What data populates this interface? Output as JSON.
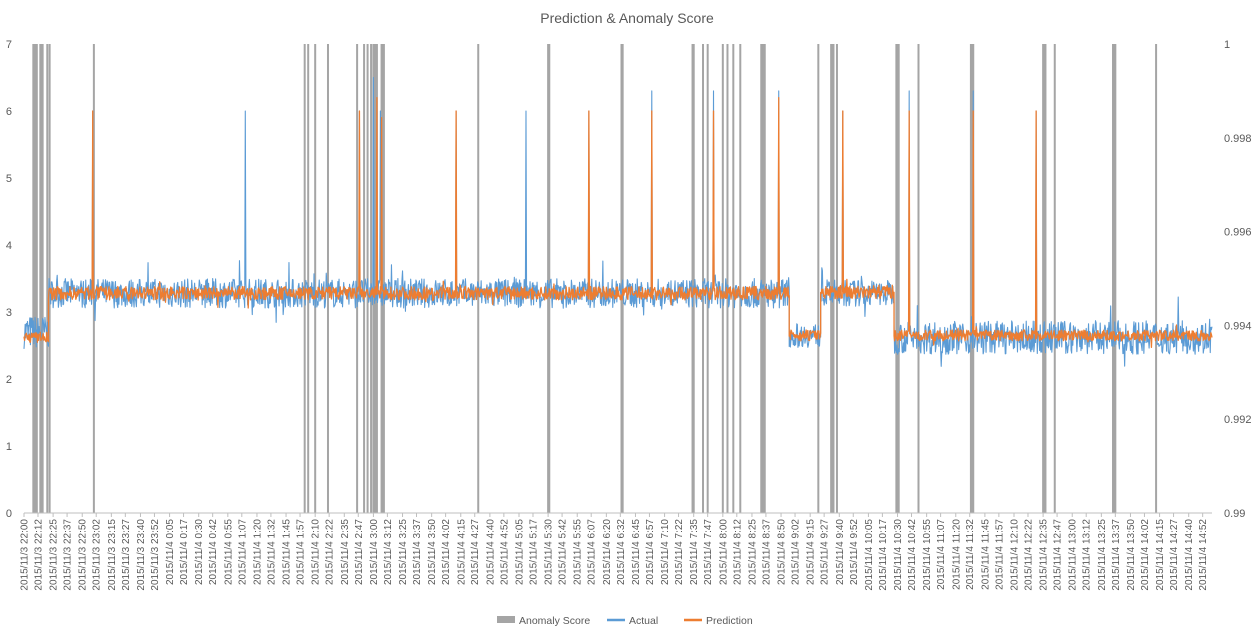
{
  "chart_data": {
    "type": "line",
    "title": "Prediction & Anomaly Score",
    "xlabel": "",
    "ylabel": "",
    "y_left": {
      "min": 0,
      "max": 7,
      "ticks": [
        "0",
        "1",
        "2",
        "3",
        "4",
        "5",
        "6",
        "7"
      ]
    },
    "y_right": {
      "min": 0.99,
      "max": 1.0,
      "ticks": [
        "0.99",
        "0.992",
        "0.994",
        "0.996",
        "0.998",
        "1"
      ]
    },
    "x_range": [
      "2015/11/3 22:00",
      "2015/11/4 15:00"
    ],
    "x_tick_labels": [
      "2015/11/3 22:00",
      "2015/11/3 22:12",
      "2015/11/3 22:25",
      "2015/11/3 22:37",
      "2015/11/3 22:50",
      "2015/11/3 23:02",
      "2015/11/3 23:15",
      "2015/11/3 23:27",
      "2015/11/3 23:40",
      "2015/11/3 23:52",
      "2015/11/4 0:05",
      "2015/11/4 0:17",
      "2015/11/4 0:30",
      "2015/11/4 0:42",
      "2015/11/4 0:55",
      "2015/11/4 1:07",
      "2015/11/4 1:20",
      "2015/11/4 1:32",
      "2015/11/4 1:45",
      "2015/11/4 1:57",
      "2015/11/4 2:10",
      "2015/11/4 2:22",
      "2015/11/4 2:35",
      "2015/11/4 2:47",
      "2015/11/4 3:00",
      "2015/11/4 3:12",
      "2015/11/4 3:25",
      "2015/11/4 3:37",
      "2015/11/4 3:50",
      "2015/11/4 4:02",
      "2015/11/4 4:15",
      "2015/11/4 4:27",
      "2015/11/4 4:40",
      "2015/11/4 4:52",
      "2015/11/4 5:05",
      "2015/11/4 5:17",
      "2015/11/4 5:30",
      "2015/11/4 5:42",
      "2015/11/4 5:55",
      "2015/11/4 6:07",
      "2015/11/4 6:20",
      "2015/11/4 6:32",
      "2015/11/4 6:45",
      "2015/11/4 6:57",
      "2015/11/4 7:10",
      "2015/11/4 7:22",
      "2015/11/4 7:35",
      "2015/11/4 7:47",
      "2015/11/4 8:00",
      "2015/11/4 8:12",
      "2015/11/4 8:25",
      "2015/11/4 8:37",
      "2015/11/4 8:50",
      "2015/11/4 9:02",
      "2015/11/4 9:15",
      "2015/11/4 9:27",
      "2015/11/4 9:40",
      "2015/11/4 9:52",
      "2015/11/4 10:05",
      "2015/11/4 10:17",
      "2015/11/4 10:30",
      "2015/11/4 10:42",
      "2015/11/4 10:55",
      "2015/11/4 11:07",
      "2015/11/4 11:20",
      "2015/11/4 11:32",
      "2015/11/4 11:45",
      "2015/11/4 11:57",
      "2015/11/4 12:10",
      "2015/11/4 12:22",
      "2015/11/4 12:35",
      "2015/11/4 12:47",
      "2015/11/4 13:00",
      "2015/11/4 13:12",
      "2015/11/4 13:25",
      "2015/11/4 13:37",
      "2015/11/4 13:50",
      "2015/11/4 14:02",
      "2015/11/4 14:15",
      "2015/11/4 14:27",
      "2015/11/4 14:40",
      "2015/11/4 14:52"
    ],
    "grid": false,
    "legend": {
      "position": "bottom",
      "entries": [
        "Anomaly Score",
        "Actual",
        "Prediction"
      ]
    },
    "series": [
      {
        "name": "Anomaly Score",
        "kind": "bar",
        "axis": "right",
        "color": "#a5a5a5",
        "value_when_flagged": 1.0,
        "flagged_x": [
          "2015/11/3 22:08",
          "2015/11/3 22:09",
          "2015/11/3 22:10",
          "2015/11/3 22:11",
          "2015/11/3 22:14",
          "2015/11/3 22:15",
          "2015/11/3 22:16",
          "2015/11/3 22:20",
          "2015/11/3 22:22",
          "2015/11/3 23:00",
          "2015/11/4 2:01",
          "2015/11/4 2:04",
          "2015/11/4 2:10",
          "2015/11/4 2:21",
          "2015/11/4 2:46",
          "2015/11/4 2:52",
          "2015/11/4 2:55",
          "2015/11/4 2:58",
          "2015/11/4 3:00",
          "2015/11/4 3:01",
          "2015/11/4 3:02",
          "2015/11/4 3:03",
          "2015/11/4 3:07",
          "2015/11/4 3:08",
          "2015/11/4 3:09",
          "2015/11/4 4:30",
          "2015/11/4 5:30",
          "2015/11/4 5:31",
          "2015/11/4 6:33",
          "2015/11/4 6:34",
          "2015/11/4 7:34",
          "2015/11/4 7:35",
          "2015/11/4 7:43",
          "2015/11/4 7:47",
          "2015/11/4 8:00",
          "2015/11/4 8:04",
          "2015/11/4 8:09",
          "2015/11/4 8:15",
          "2015/11/4 8:33",
          "2015/11/4 8:34",
          "2015/11/4 8:35",
          "2015/11/4 8:36",
          "2015/11/4 9:22",
          "2015/11/4 9:33",
          "2015/11/4 9:34",
          "2015/11/4 9:35",
          "2015/11/4 9:38",
          "2015/11/4 10:29",
          "2015/11/4 10:30",
          "2015/11/4 10:31",
          "2015/11/4 10:48",
          "2015/11/4 11:33",
          "2015/11/4 11:34",
          "2015/11/4 11:35",
          "2015/11/4 12:35",
          "2015/11/4 12:36",
          "2015/11/4 12:37",
          "2015/11/4 12:45",
          "2015/11/4 13:35",
          "2015/11/4 13:36",
          "2015/11/4 13:37",
          "2015/11/4 14:12"
        ]
      },
      {
        "name": "Actual",
        "kind": "line",
        "axis": "left",
        "color": "#5b9bd5",
        "segments": [
          {
            "from": "2015/11/3 22:00",
            "to": "2015/11/3 22:21",
            "baseline": 2.7,
            "noise": 0.25
          },
          {
            "from": "2015/11/3 22:21",
            "to": "2015/11/4 8:57",
            "baseline": 3.28,
            "noise": 0.22
          },
          {
            "from": "2015/11/4 8:57",
            "to": "2015/11/4 9:24",
            "baseline": 2.65,
            "noise": 0.18
          },
          {
            "from": "2015/11/4 9:24",
            "to": "2015/11/4 10:27",
            "baseline": 3.28,
            "noise": 0.2
          },
          {
            "from": "2015/11/4 10:27",
            "to": "2015/11/4 15:00",
            "baseline": 2.62,
            "noise": 0.25
          }
        ],
        "spikes": [
          {
            "x": "2015/11/3 22:59",
            "y": 6.0
          },
          {
            "x": "2015/11/4 1:10",
            "y": 6.0
          },
          {
            "x": "2015/11/4 2:48",
            "y": 6.0
          },
          {
            "x": "2015/11/4 3:00",
            "y": 6.5
          },
          {
            "x": "2015/11/4 3:06",
            "y": 6.0
          },
          {
            "x": "2015/11/4 4:11",
            "y": 6.0
          },
          {
            "x": "2015/11/4 5:11",
            "y": 6.0
          },
          {
            "x": "2015/11/4 6:05",
            "y": 6.0
          },
          {
            "x": "2015/11/4 6:59",
            "y": 6.3
          },
          {
            "x": "2015/11/4 7:52",
            "y": 6.3
          },
          {
            "x": "2015/11/4 8:48",
            "y": 6.3
          },
          {
            "x": "2015/11/4 9:43",
            "y": 6.0
          },
          {
            "x": "2015/11/4 10:40",
            "y": 6.3
          },
          {
            "x": "2015/11/4 11:35",
            "y": 6.3
          },
          {
            "x": "2015/11/4 12:29",
            "y": 6.0
          }
        ]
      },
      {
        "name": "Prediction",
        "kind": "line",
        "axis": "left",
        "color": "#ed7d31",
        "segments": [
          {
            "from": "2015/11/3 22:00",
            "to": "2015/11/3 22:21",
            "baseline": 2.62,
            "noise": 0.08
          },
          {
            "from": "2015/11/3 22:21",
            "to": "2015/11/4 8:57",
            "baseline": 3.28,
            "noise": 0.1
          },
          {
            "from": "2015/11/4 8:57",
            "to": "2015/11/4 9:24",
            "baseline": 2.65,
            "noise": 0.08
          },
          {
            "from": "2015/11/4 9:24",
            "to": "2015/11/4 10:27",
            "baseline": 3.3,
            "noise": 0.1
          },
          {
            "from": "2015/11/4 10:27",
            "to": "2015/11/4 15:00",
            "baseline": 2.65,
            "noise": 0.08
          }
        ],
        "spikes": [
          {
            "x": "2015/11/3 22:59",
            "y": 6.0
          },
          {
            "x": "2015/11/4 2:48",
            "y": 6.0
          },
          {
            "x": "2015/11/4 3:03",
            "y": 6.2
          },
          {
            "x": "2015/11/4 3:07",
            "y": 5.9
          },
          {
            "x": "2015/11/4 4:11",
            "y": 6.0
          },
          {
            "x": "2015/11/4 6:05",
            "y": 6.0
          },
          {
            "x": "2015/11/4 6:59",
            "y": 6.0
          },
          {
            "x": "2015/11/4 7:52",
            "y": 6.0
          },
          {
            "x": "2015/11/4 8:48",
            "y": 6.2
          },
          {
            "x": "2015/11/4 9:43",
            "y": 6.0
          },
          {
            "x": "2015/11/4 10:40",
            "y": 6.0
          },
          {
            "x": "2015/11/4 11:35",
            "y": 6.0
          },
          {
            "x": "2015/11/4 12:29",
            "y": 6.0
          }
        ]
      }
    ]
  }
}
